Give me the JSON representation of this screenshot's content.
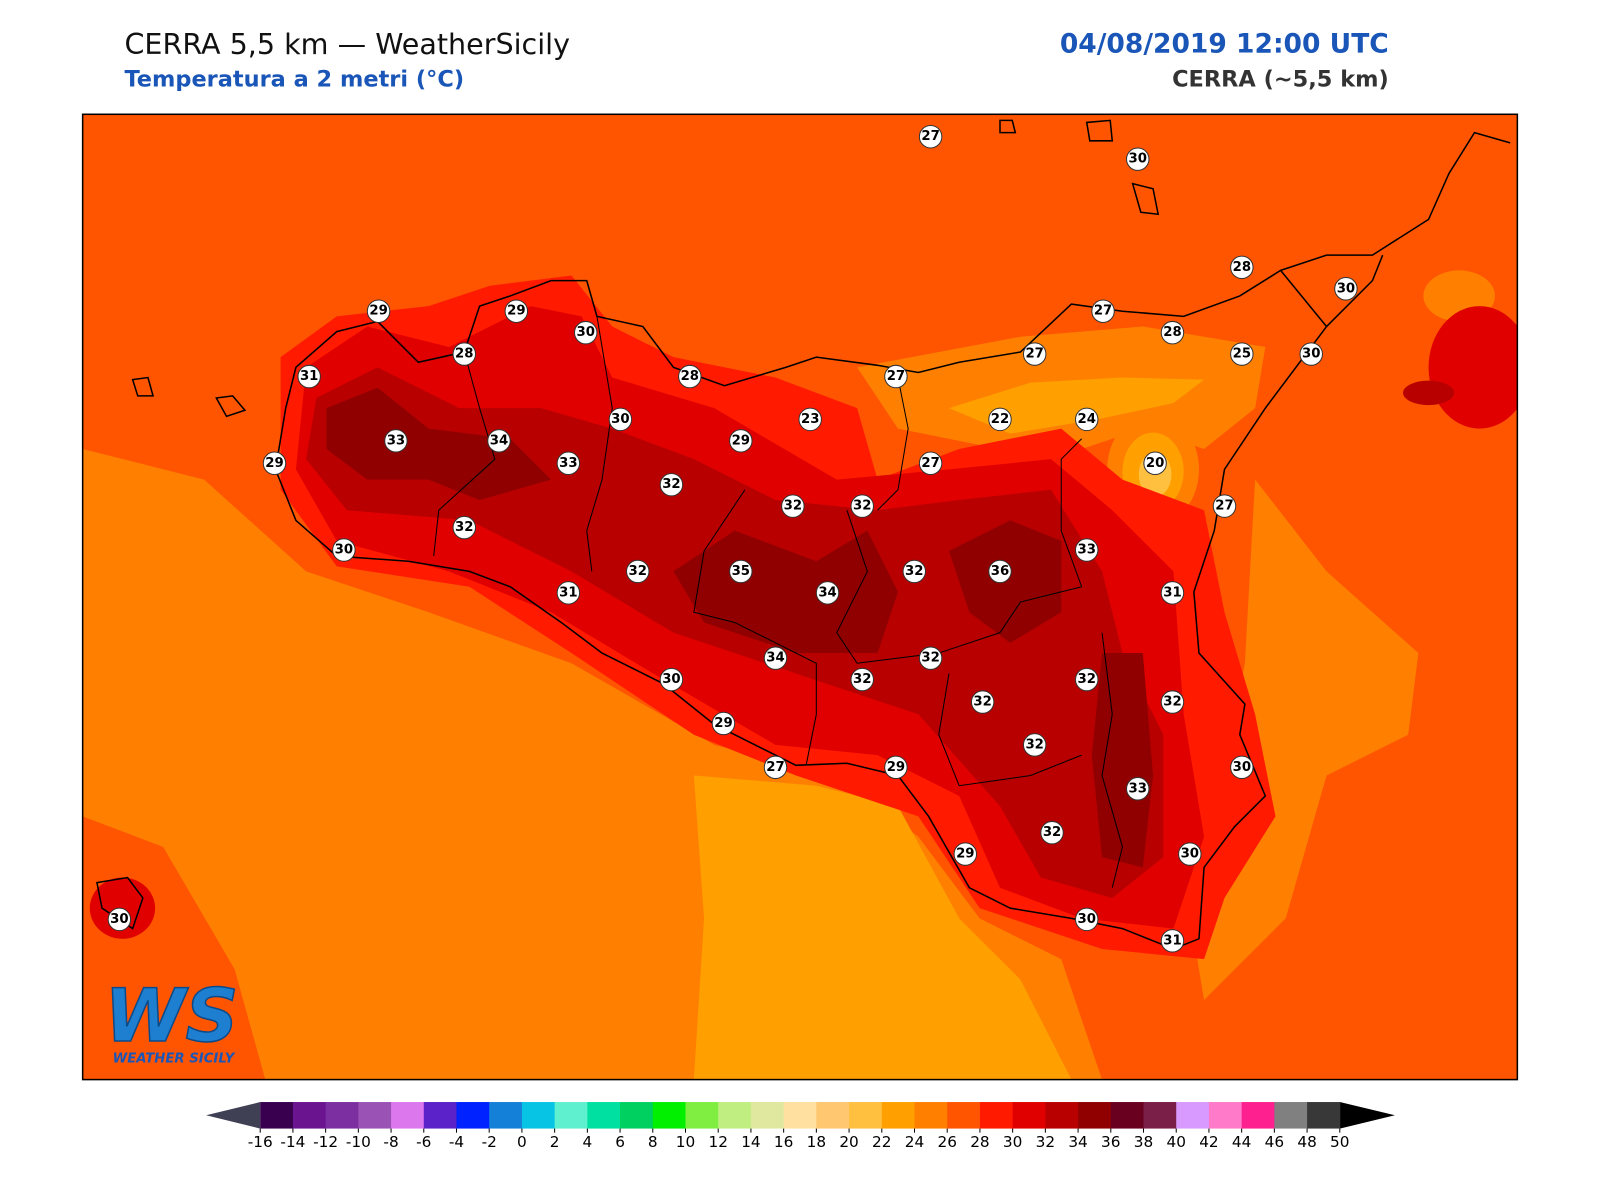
{
  "header": {
    "title": "CERRA 5,5 km — WeatherSicily",
    "subtitle": "Temperatura a 2 metri (°C)",
    "date": "04/08/2019 12:00 UTC",
    "model": "CERRA (~5,5 km)"
  },
  "map": {
    "stations": [
      27,
      30,
      28,
      30,
      29,
      29,
      30,
      27,
      28,
      28,
      31,
      28,
      27,
      27,
      25,
      30,
      30,
      23,
      22,
      24,
      33,
      34,
      29,
      29,
      33,
      27,
      20,
      32,
      32,
      32,
      27,
      32,
      30,
      33,
      32,
      35,
      32,
      36,
      34,
      31,
      31,
      34,
      32,
      30,
      32,
      32,
      32,
      32,
      29,
      32,
      27,
      29,
      30,
      33,
      32,
      29,
      30,
      30,
      30,
      31
    ]
  },
  "colorbar": {
    "ticks": [
      -16,
      -14,
      -12,
      -10,
      -8,
      -6,
      -4,
      -2,
      0,
      2,
      4,
      6,
      8,
      10,
      12,
      14,
      16,
      18,
      20,
      22,
      24,
      26,
      28,
      30,
      32,
      34,
      36,
      38,
      40,
      42,
      44,
      46,
      48,
      50
    ],
    "colors": [
      "#3a0050",
      "#6a1490",
      "#7b2fa0",
      "#9b52b5",
      "#dd77ee",
      "#5a22c8",
      "#0022ff",
      "#1580d8",
      "#08c4e4",
      "#5ff0d0",
      "#00e0a0",
      "#00d060",
      "#00f000",
      "#80ee40",
      "#c0ee80",
      "#e0e8a0",
      "#ffe0a0",
      "#ffc870",
      "#ffc040",
      "#ffa000",
      "#ff8000",
      "#ff5500",
      "#ff1a00",
      "#e00000",
      "#b80000",
      "#900000",
      "#6a0020",
      "#7a2048",
      "#d89aff",
      "#ff7ac8",
      "#ff2090",
      "#808080",
      "#383838"
    ],
    "under_color": "#404055",
    "over_color": "#000000"
  },
  "logo": {
    "mark": "WS",
    "name": "WEATHER SICILY"
  }
}
